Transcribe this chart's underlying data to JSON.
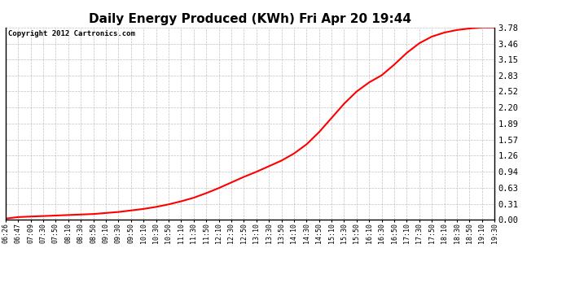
{
  "title": "Daily Energy Produced (KWh) Fri Apr 20 19:44",
  "copyright_text": "Copyright 2012 Cartronics.com",
  "line_color": "#ff0000",
  "background_color": "#ffffff",
  "plot_bg_color": "#ffffff",
  "grid_color": "#999999",
  "title_fontsize": 11,
  "yticks": [
    0.0,
    0.31,
    0.63,
    0.94,
    1.26,
    1.57,
    1.89,
    2.2,
    2.52,
    2.83,
    3.15,
    3.46,
    3.78
  ],
  "ylim": [
    0.0,
    3.78
  ],
  "xtick_labels": [
    "06:26",
    "06:47",
    "07:09",
    "07:30",
    "07:50",
    "08:10",
    "08:30",
    "08:50",
    "09:10",
    "09:30",
    "09:50",
    "10:10",
    "10:30",
    "10:50",
    "11:10",
    "11:30",
    "11:50",
    "12:10",
    "12:30",
    "12:50",
    "13:10",
    "13:30",
    "13:50",
    "14:10",
    "14:30",
    "14:50",
    "15:10",
    "15:30",
    "15:50",
    "16:10",
    "16:30",
    "16:50",
    "17:10",
    "17:30",
    "17:50",
    "18:10",
    "18:30",
    "18:50",
    "19:10",
    "19:30"
  ],
  "x_values": [
    0,
    1,
    2,
    3,
    4,
    5,
    6,
    7,
    8,
    9,
    10,
    11,
    12,
    13,
    14,
    15,
    16,
    17,
    18,
    19,
    20,
    21,
    22,
    23,
    24,
    25,
    26,
    27,
    28,
    29,
    30,
    31,
    32,
    33,
    34,
    35,
    36,
    37,
    38,
    39
  ],
  "y_values": [
    0.02,
    0.05,
    0.06,
    0.07,
    0.08,
    0.09,
    0.1,
    0.11,
    0.13,
    0.15,
    0.18,
    0.21,
    0.25,
    0.3,
    0.36,
    0.43,
    0.52,
    0.62,
    0.73,
    0.84,
    0.94,
    1.05,
    1.16,
    1.3,
    1.48,
    1.72,
    2.0,
    2.28,
    2.52,
    2.7,
    2.84,
    3.05,
    3.28,
    3.47,
    3.6,
    3.68,
    3.73,
    3.76,
    3.78,
    3.78
  ]
}
